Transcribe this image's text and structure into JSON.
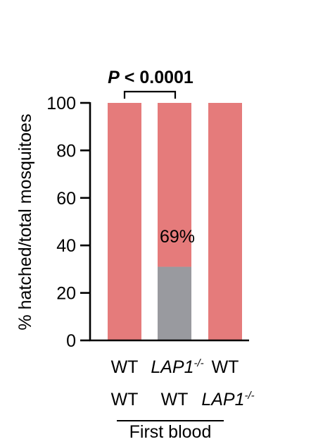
{
  "chart_data": {
    "type": "bar",
    "stacked": true,
    "ylabel": "% hatched/total mosquitoes",
    "ylim": [
      0,
      100
    ],
    "yticks": [
      "0",
      "20",
      "40",
      "60",
      "80",
      "100"
    ],
    "grid": false,
    "categories": [
      {
        "row1": "WT",
        "row2": "WT"
      },
      {
        "row1": "LAP1",
        "row1_sup": "-/-",
        "row2": "WT"
      },
      {
        "row1": "WT",
        "row2": "LAP1",
        "row2_sup": "-/-"
      }
    ],
    "series": [
      {
        "color": "#999a9f",
        "values": [
          0,
          31,
          0
        ]
      },
      {
        "color": "#e57b7b",
        "values": [
          100,
          69,
          100
        ]
      }
    ],
    "annotations": {
      "bar_label": "69%",
      "significance": {
        "prefix": "P",
        "text": " < 0.0001"
      },
      "group_label": "First blood"
    },
    "colors": {
      "highlight_text": "#d2342e"
    }
  }
}
